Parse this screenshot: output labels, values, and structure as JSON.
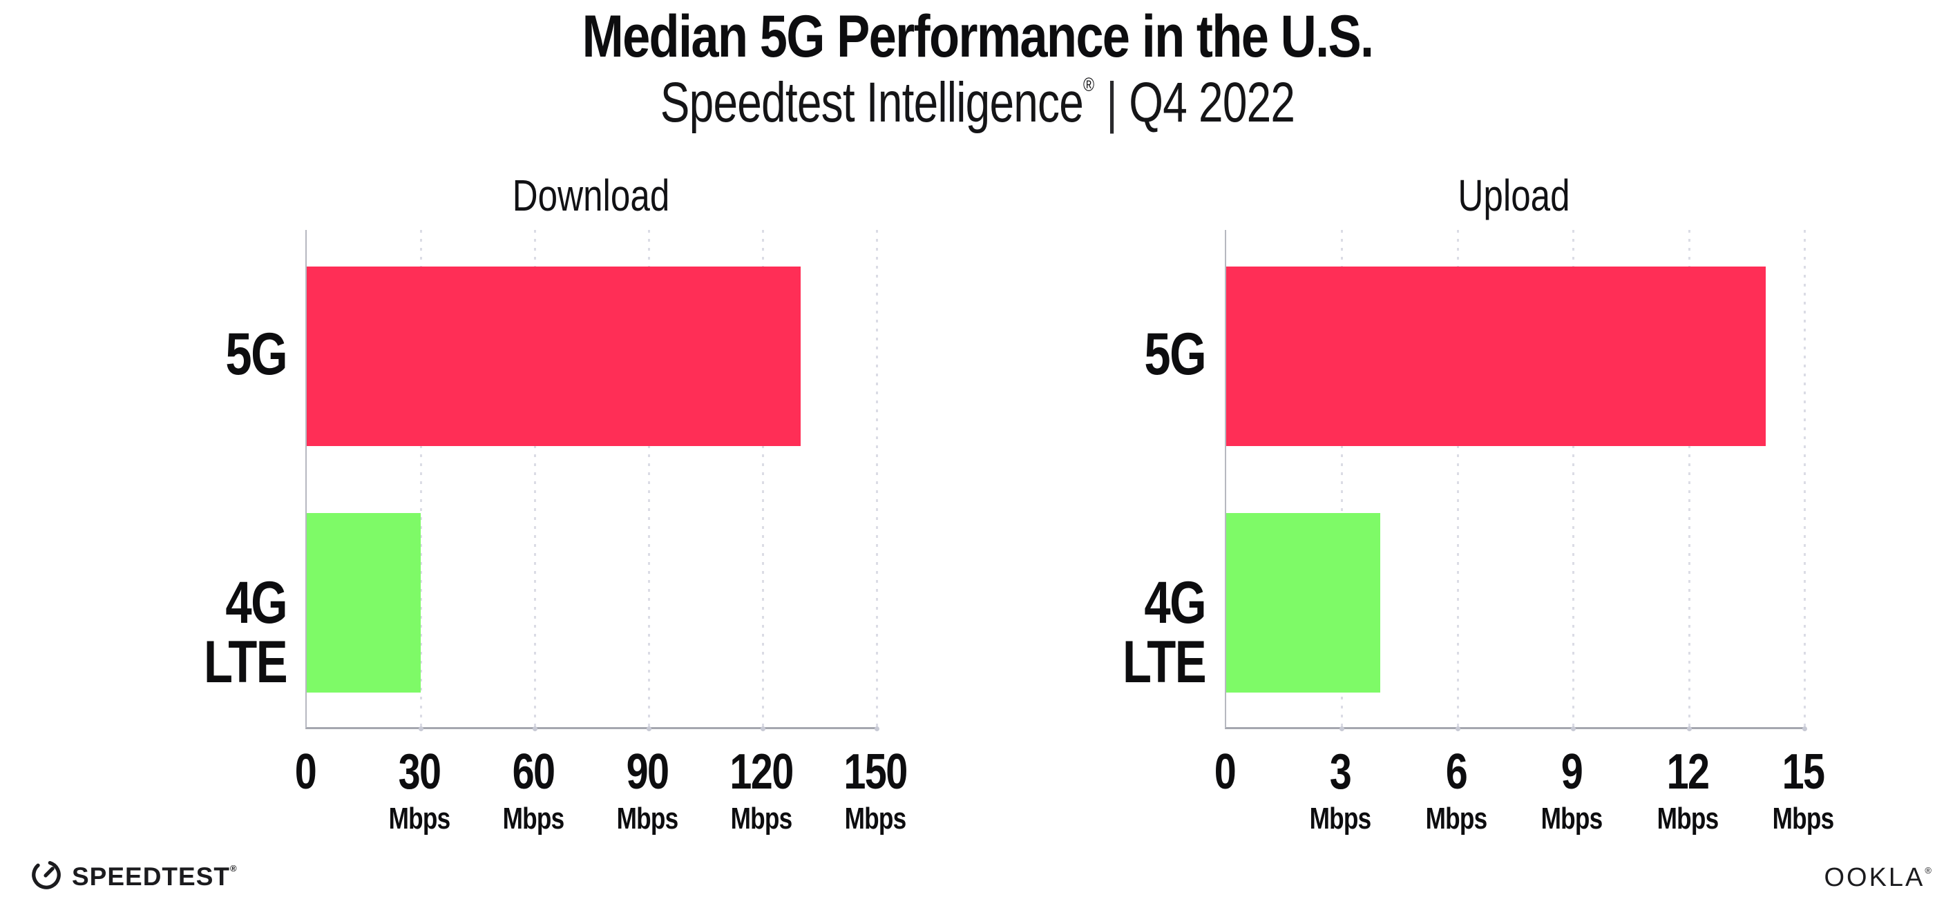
{
  "header": {
    "title": "Median 5G Performance in the U.S.",
    "subtitle_brand": "Speedtest Intelligence",
    "subtitle_reg": "®",
    "subtitle_sep": "|",
    "subtitle_period": "Q4 2022"
  },
  "chart_data": [
    {
      "type": "bar",
      "orientation": "horizontal",
      "title": "Download",
      "categories": [
        "5G",
        "4G LTE"
      ],
      "values": [
        130,
        30
      ],
      "unit": "Mbps",
      "xlim": [
        0,
        150
      ],
      "xticks": [
        0,
        30,
        60,
        90,
        120,
        150
      ],
      "tick_cells": [
        {
          "num": "0",
          "unit": ""
        },
        {
          "num": "30",
          "unit": "Mbps"
        },
        {
          "num": "60",
          "unit": "Mbps"
        },
        {
          "num": "90",
          "unit": "Mbps"
        },
        {
          "num": "120",
          "unit": "Mbps"
        },
        {
          "num": "150",
          "unit": "Mbps"
        }
      ],
      "bar_colors": [
        "#ff2e56",
        "#7efa67"
      ],
      "grid": "dotted-vertical",
      "legend": "none"
    },
    {
      "type": "bar",
      "orientation": "horizontal",
      "title": "Upload",
      "categories": [
        "5G",
        "4G LTE"
      ],
      "values": [
        14,
        4
      ],
      "unit": "Mbps",
      "xlim": [
        0,
        15
      ],
      "xticks": [
        0,
        3,
        6,
        9,
        12,
        15
      ],
      "tick_cells": [
        {
          "num": "0",
          "unit": ""
        },
        {
          "num": "3",
          "unit": "Mbps"
        },
        {
          "num": "6",
          "unit": "Mbps"
        },
        {
          "num": "9",
          "unit": "Mbps"
        },
        {
          "num": "12",
          "unit": "Mbps"
        },
        {
          "num": "15",
          "unit": "Mbps"
        }
      ],
      "bar_colors": [
        "#ff2e56",
        "#7efa67"
      ],
      "grid": "dotted-vertical",
      "legend": "none"
    }
  ],
  "colors": {
    "bar_5g": "#ff2e56",
    "bar_4g_lte": "#7efa67",
    "axis_line": "#a5a7af",
    "gridline_dot": "#dbdce5",
    "text": "#0d0d0f",
    "background": "#ffffff"
  },
  "footer": {
    "speedtest_label": "SPEEDTEST",
    "speedtest_reg": "®",
    "ookla_label": "OOKLA",
    "ookla_reg": "®"
  }
}
